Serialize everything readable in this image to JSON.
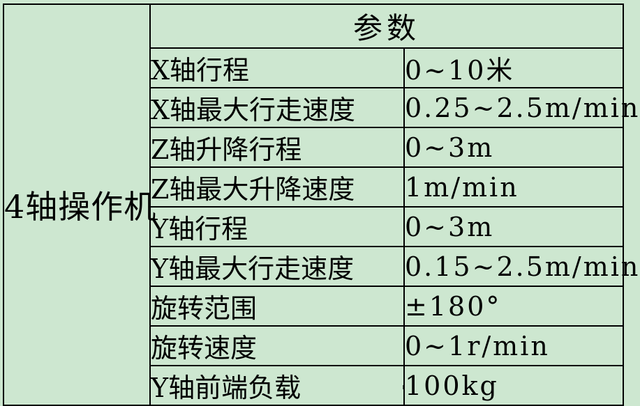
{
  "theme": {
    "bg": "#cde7d0",
    "line": "#000000",
    "ink": "#000000"
  },
  "table": {
    "device": "4轴操作机",
    "header": "参数",
    "rows": [
      {
        "name": "X轴行程",
        "value": "0~10米"
      },
      {
        "name": "X轴最大行走速度",
        "value": "0.25~2.5m/min"
      },
      {
        "name": "Z轴升降行程",
        "value": "0~3m"
      },
      {
        "name": "Z轴最大升降速度",
        "value": "1m/min"
      },
      {
        "name": "Y轴行程",
        "value": "0~3m"
      },
      {
        "name": "Y轴最大行走速度",
        "value": "0.15~2.5m/min"
      },
      {
        "name": "旋转范围",
        "value": "±180°"
      },
      {
        "name": "旋转速度",
        "value": "0~1r/min"
      },
      {
        "name": "Y轴前端负载",
        "value": "100kg"
      }
    ]
  }
}
